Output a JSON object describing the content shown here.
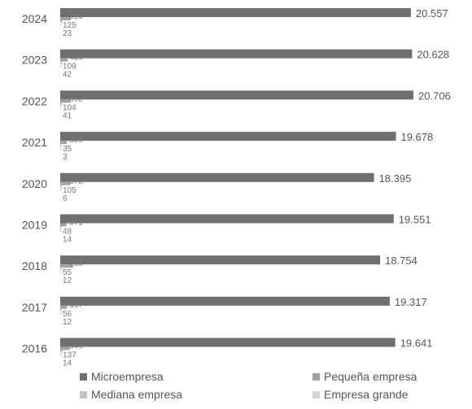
{
  "chart_data": {
    "type": "bar",
    "orientation": "horizontal",
    "categories": [
      "2024",
      "2023",
      "2022",
      "2021",
      "2020",
      "2019",
      "2018",
      "2017",
      "2016"
    ],
    "series": [
      {
        "name": "Microempresa",
        "values": [
          20557,
          20628,
          20706,
          19678,
          18395,
          19551,
          18754,
          19317,
          19641
        ],
        "color": "#6f6f6f"
      },
      {
        "name": "Pequeña empresa",
        "values": [
          616,
          430,
          592,
          389,
          578,
          371,
          758,
          397,
          549
        ],
        "color": "#a3a3a3"
      },
      {
        "name": "Mediana empresa",
        "values": [
          125,
          109,
          104,
          35,
          105,
          48,
          55,
          56,
          137
        ],
        "color": "#c4c4c4"
      },
      {
        "name": "Empresa grande",
        "values": [
          23,
          42,
          41,
          3,
          6,
          14,
          12,
          12,
          14
        ],
        "color": "#d6d6d6"
      }
    ],
    "value_labels": {
      "Microempresa": [
        "20.557",
        "20.628",
        "20.706",
        "19.678",
        "18.395",
        "19.551",
        "18.754",
        "19.317",
        "19.641"
      ],
      "Pequeña empresa": [
        "616",
        "430",
        "592",
        "389",
        "578",
        "371",
        "758",
        "397",
        "549"
      ],
      "Mediana empresa": [
        "125",
        "109",
        "104",
        "35",
        "105",
        "48",
        "55",
        "56",
        "137"
      ],
      "Empresa grande": [
        "23",
        "42",
        "41",
        "3",
        "6",
        "14",
        "12",
        "12",
        "14"
      ]
    },
    "xlim": [
      0,
      20800
    ],
    "grid": false,
    "legend_position": "bottom"
  }
}
